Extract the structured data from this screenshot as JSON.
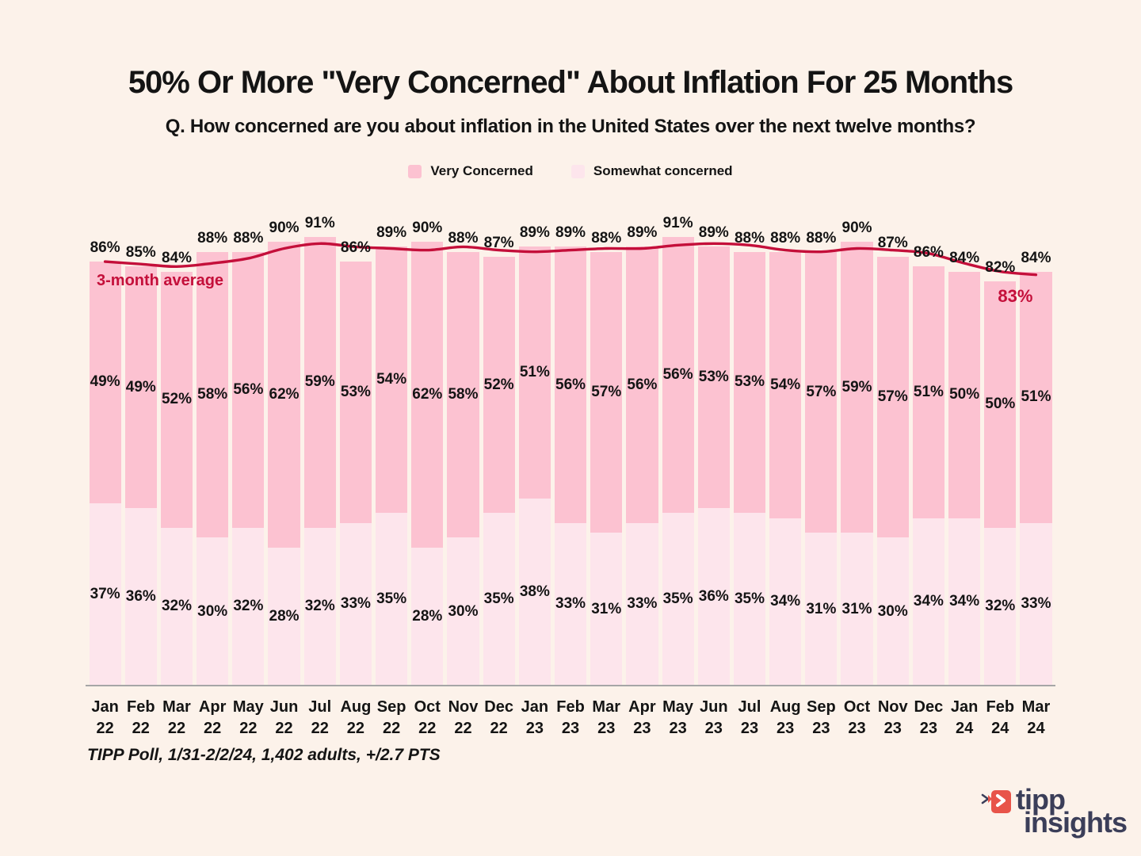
{
  "page": {
    "title": "50% Or More \"Very Concerned\" About Inflation For 25 Months",
    "subtitle": "Q. How concerned are you about inflation in the United States over the next twelve months?",
    "footer": "TIPP Poll, 1/31-2/2/24, 1,402 adults, +/2.7 PTS",
    "background_color": "#fcf2ea",
    "text_color": "#141414",
    "axis_line_color": "#a6a6a6"
  },
  "logo": {
    "text_top": "tipp",
    "text_bottom": "insights",
    "navy_color": "#3b3e59",
    "red_color": "#e8544a"
  },
  "chart_data": {
    "type": "bar",
    "stacked": true,
    "grid": false,
    "legend_position": "top",
    "ylim": [
      0,
      100
    ],
    "value_suffix": "%",
    "categories": [
      {
        "month": "Jan",
        "year": "22"
      },
      {
        "month": "Feb",
        "year": "22"
      },
      {
        "month": "Mar",
        "year": "22"
      },
      {
        "month": "Apr",
        "year": "22"
      },
      {
        "month": "May",
        "year": "22"
      },
      {
        "month": "Jun",
        "year": "22"
      },
      {
        "month": "Jul",
        "year": "22"
      },
      {
        "month": "Aug",
        "year": "22"
      },
      {
        "month": "Sep",
        "year": "22"
      },
      {
        "month": "Oct",
        "year": "22"
      },
      {
        "month": "Nov",
        "year": "22"
      },
      {
        "month": "Dec",
        "year": "22"
      },
      {
        "month": "Jan",
        "year": "23"
      },
      {
        "month": "Feb",
        "year": "23"
      },
      {
        "month": "Mar",
        "year": "23"
      },
      {
        "month": "Apr",
        "year": "23"
      },
      {
        "month": "May",
        "year": "23"
      },
      {
        "month": "Jun",
        "year": "23"
      },
      {
        "month": "Jul",
        "year": "23"
      },
      {
        "month": "Aug",
        "year": "23"
      },
      {
        "month": "Sep",
        "year": "23"
      },
      {
        "month": "Oct",
        "year": "23"
      },
      {
        "month": "Nov",
        "year": "23"
      },
      {
        "month": "Dec",
        "year": "23"
      },
      {
        "month": "Jan",
        "year": "24"
      },
      {
        "month": "Feb",
        "year": "24"
      },
      {
        "month": "Mar",
        "year": "24"
      }
    ],
    "series": [
      {
        "name": "Very Concerned",
        "position": "top",
        "color": "#fcc2d1",
        "values": [
          49,
          49,
          52,
          58,
          56,
          62,
          59,
          53,
          54,
          62,
          58,
          52,
          51,
          56,
          57,
          56,
          56,
          53,
          53,
          54,
          57,
          59,
          57,
          51,
          50,
          50,
          51
        ]
      },
      {
        "name": "Somewhat concerned",
        "position": "bottom",
        "color": "#fde5ec",
        "values": [
          37,
          36,
          32,
          30,
          32,
          28,
          32,
          33,
          35,
          28,
          30,
          35,
          38,
          33,
          31,
          33,
          35,
          36,
          35,
          34,
          31,
          31,
          30,
          34,
          34,
          32,
          33
        ]
      }
    ],
    "totals": [
      86,
      85,
      84,
      88,
      88,
      90,
      91,
      86,
      89,
      90,
      88,
      87,
      89,
      89,
      88,
      89,
      91,
      89,
      88,
      88,
      88,
      90,
      87,
      86,
      84,
      82,
      84
    ],
    "moving_average": {
      "label": "3-month average",
      "window": 3,
      "color": "#c40f3a",
      "end_label": "83%"
    }
  }
}
